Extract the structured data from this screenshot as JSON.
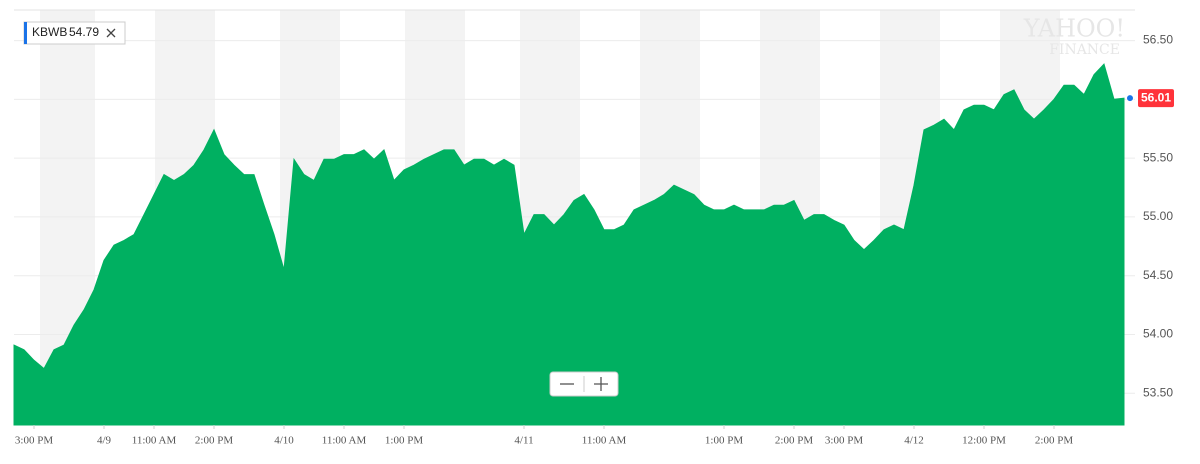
{
  "chart_data": {
    "type": "area",
    "legend_value": 54.79,
    "last_price": 56.01,
    "watermark": [
      "YAHOO!",
      "FINANCE"
    ],
    "categories": [
      null,
      null,
      "3:00 PM",
      null,
      null,
      null,
      null,
      null,
      null,
      "4/9",
      null,
      null,
      null,
      null,
      "11:00 AM",
      null,
      null,
      null,
      null,
      null,
      "2:00 PM",
      null,
      null,
      null,
      null,
      null,
      null,
      "4/10",
      null,
      null,
      null,
      null,
      null,
      "11:00 AM",
      null,
      null,
      null,
      null,
      null,
      "1:00 PM",
      null,
      null,
      null,
      null,
      null,
      null,
      null,
      null,
      null,
      null,
      null,
      "4/11",
      null,
      null,
      null,
      null,
      null,
      null,
      null,
      "11:00 AM",
      null,
      null,
      null,
      null,
      null,
      null,
      null,
      null,
      null,
      null,
      null,
      "1:00 PM",
      null,
      null,
      null,
      null,
      null,
      null,
      "2:00 PM",
      null,
      null,
      null,
      null,
      "3:00 PM",
      null,
      null,
      null,
      null,
      null,
      null,
      "4/12",
      null,
      null,
      null,
      null,
      null,
      null,
      "12:00 PM",
      null,
      null,
      null,
      null,
      null,
      null,
      "2:00 PM",
      null,
      null,
      null,
      null,
      null,
      null,
      null
    ],
    "series": [
      {
        "name": "KBWB",
        "color": "#00b061",
        "values": [
          53.91,
          53.87,
          53.78,
          53.71,
          53.87,
          53.91,
          54.08,
          54.21,
          54.38,
          54.63,
          54.76,
          54.8,
          54.85,
          55.02,
          55.19,
          55.36,
          55.31,
          55.36,
          55.44,
          55.57,
          55.74,
          55.53,
          55.44,
          55.36,
          55.36,
          55.1,
          54.85,
          54.55,
          55.49,
          55.36,
          55.31,
          55.49,
          55.49,
          55.53,
          55.53,
          55.57,
          55.49,
          55.57,
          55.31,
          55.4,
          55.44,
          55.49,
          55.53,
          55.57,
          55.57,
          55.44,
          55.49,
          55.49,
          55.44,
          55.49,
          55.44,
          54.85,
          55.02,
          55.02,
          54.93,
          55.02,
          55.14,
          55.19,
          55.06,
          54.89,
          54.89,
          54.93,
          55.06,
          55.1,
          55.14,
          55.19,
          55.27,
          55.23,
          55.19,
          55.1,
          55.06,
          55.06,
          55.1,
          55.06,
          55.06,
          55.06,
          55.1,
          55.1,
          55.14,
          54.97,
          55.02,
          55.02,
          54.97,
          54.93,
          54.8,
          54.72,
          54.8,
          54.89,
          54.93,
          54.89,
          55.27,
          55.74,
          55.78,
          55.83,
          55.74,
          55.91,
          55.95,
          55.95,
          55.91,
          56.04,
          56.08,
          55.91,
          55.83,
          55.91,
          56.0,
          56.12,
          56.12,
          56.04,
          56.21,
          56.3,
          56.0,
          56.01
        ]
      }
    ],
    "ylim": [
      53.23,
      56.76
    ],
    "yticks": [
      {
        "value": 53.5,
        "label": "53.50"
      },
      {
        "value": 54,
        "label": "54.00"
      },
      {
        "value": 54.5,
        "label": "54.50"
      },
      {
        "value": 55,
        "label": "55.00"
      },
      {
        "value": 55.5,
        "label": "55.50"
      },
      {
        "value": 56,
        "label": "56.00"
      },
      {
        "value": 56.5,
        "label": "56.50"
      }
    ],
    "grid": true
  }
}
